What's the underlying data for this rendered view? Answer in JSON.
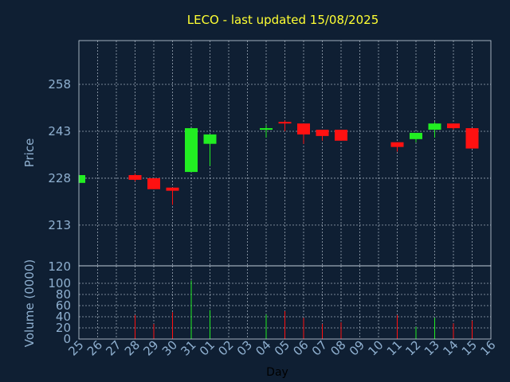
{
  "chart_data": {
    "type": "candlestick",
    "title": "LECO - last updated 15/08/2025",
    "xlabel": "Day",
    "price_panel": {
      "ylabel": "Price",
      "yticks": [
        213,
        228,
        243,
        258
      ],
      "ylim": [
        200,
        272
      ],
      "grid": true
    },
    "volume_panel": {
      "ylabel": "Volume (0000)",
      "yticks": [
        0,
        20,
        40,
        60,
        80,
        100,
        120
      ],
      "ylim": [
        0,
        120
      ],
      "grid": true
    },
    "x_labels": [
      "25",
      "26",
      "27",
      "28",
      "29",
      "30",
      "31",
      "01",
      "02",
      "03",
      "04",
      "05",
      "06",
      "07",
      "08",
      "09",
      "10",
      "11",
      "12",
      "13",
      "14",
      "15",
      "16"
    ],
    "colors": {
      "up": "#22ee22",
      "down": "#ff1111",
      "background": "#0f1f33",
      "title": "#ffff33",
      "axis": "#8fb0d0"
    },
    "candles": [
      {
        "day": "25",
        "open": 226.5,
        "high": 229,
        "low": 226.5,
        "close": 229,
        "volume": 0
      },
      {
        "day": "28",
        "open": 229,
        "high": 229.5,
        "low": 227,
        "close": 227.5,
        "volume": 43
      },
      {
        "day": "29",
        "open": 228,
        "high": 228,
        "low": 224.5,
        "close": 224.5,
        "volume": 27
      },
      {
        "day": "30",
        "open": 225,
        "high": 225,
        "low": 219.5,
        "close": 224,
        "volume": 48
      },
      {
        "day": "31",
        "open": 230,
        "high": 244,
        "low": 230,
        "close": 244,
        "volume": 105
      },
      {
        "day": "01",
        "open": 239,
        "high": 242,
        "low": 232,
        "close": 242,
        "volume": 52
      },
      {
        "day": "04",
        "open": 243.5,
        "high": 245,
        "low": 241,
        "close": 244,
        "volume": 44
      },
      {
        "day": "05",
        "open": 246,
        "high": 246.5,
        "low": 243,
        "close": 245.5,
        "volume": 50
      },
      {
        "day": "06",
        "open": 245.5,
        "high": 245.5,
        "low": 239,
        "close": 242,
        "volume": 38
      },
      {
        "day": "07",
        "open": 243.5,
        "high": 243.5,
        "low": 240,
        "close": 241.5,
        "volume": 27
      },
      {
        "day": "08",
        "open": 243.5,
        "high": 243.5,
        "low": 240,
        "close": 240,
        "volume": 30
      },
      {
        "day": "11",
        "open": 239.5,
        "high": 239.5,
        "low": 236.5,
        "close": 238,
        "volume": 43
      },
      {
        "day": "12",
        "open": 240.5,
        "high": 242.5,
        "low": 239.5,
        "close": 242.5,
        "volume": 22
      },
      {
        "day": "13",
        "open": 243.5,
        "high": 246,
        "low": 241,
        "close": 245.5,
        "volume": 38
      },
      {
        "day": "14",
        "open": 245.5,
        "high": 245.5,
        "low": 243.5,
        "close": 244,
        "volume": 28
      },
      {
        "day": "15",
        "open": 244,
        "high": 244,
        "low": 237.5,
        "close": 237.5,
        "volume": 33
      }
    ]
  }
}
